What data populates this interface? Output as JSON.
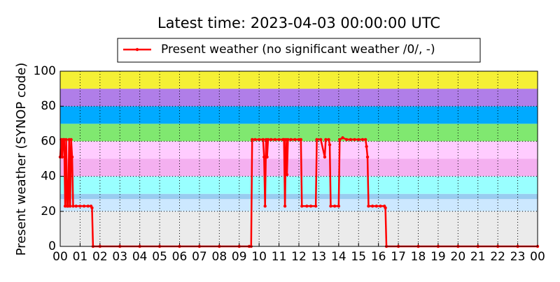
{
  "chart_data": {
    "type": "line",
    "title": "Latest time: 2023-04-03 00:00:00 UTC",
    "y_label": "Present weather (SYNOP code)",
    "xlim": [
      0,
      24
    ],
    "xticks": [
      {
        "value": 0,
        "label": "00"
      },
      {
        "value": 1,
        "label": "01"
      },
      {
        "value": 2,
        "label": "02"
      },
      {
        "value": 3,
        "label": "03"
      },
      {
        "value": 4,
        "label": "04"
      },
      {
        "value": 5,
        "label": "05"
      },
      {
        "value": 6,
        "label": "06"
      },
      {
        "value": 7,
        "label": "07"
      },
      {
        "value": 8,
        "label": "08"
      },
      {
        "value": 9,
        "label": "09"
      },
      {
        "value": 10,
        "label": "10"
      },
      {
        "value": 11,
        "label": "11"
      },
      {
        "value": 12,
        "label": "12"
      },
      {
        "value": 13,
        "label": "13"
      },
      {
        "value": 14,
        "label": "14"
      },
      {
        "value": 15,
        "label": "15"
      },
      {
        "value": 16,
        "label": "16"
      },
      {
        "value": 17,
        "label": "17"
      },
      {
        "value": 18,
        "label": "18"
      },
      {
        "value": 19,
        "label": "19"
      },
      {
        "value": 20,
        "label": "20"
      },
      {
        "value": 21,
        "label": "21"
      },
      {
        "value": 22,
        "label": "22"
      },
      {
        "value": 23,
        "label": "23"
      },
      {
        "value": 24,
        "label": "00"
      }
    ],
    "ylim": [
      0,
      100
    ],
    "yticks": [
      0,
      20,
      40,
      60,
      80,
      100
    ],
    "grid": true,
    "bands": [
      {
        "from": 0,
        "to": 20,
        "color": "#ebebeb"
      },
      {
        "from": 20,
        "to": 27,
        "color": "#cce8ff"
      },
      {
        "from": 27,
        "to": 30,
        "color": "#99ccf0"
      },
      {
        "from": 30,
        "to": 40,
        "color": "#99ffff"
      },
      {
        "from": 40,
        "to": 50,
        "color": "#f4b0f0"
      },
      {
        "from": 50,
        "to": 60,
        "color": "#ffccff"
      },
      {
        "from": 60,
        "to": 70,
        "color": "#80e870"
      },
      {
        "from": 70,
        "to": 80,
        "color": "#00aaff"
      },
      {
        "from": 80,
        "to": 90,
        "color": "#b07ee8"
      },
      {
        "from": 90,
        "to": 100,
        "color": "#f5f035"
      }
    ],
    "x": [
      0,
      0.05,
      0.1,
      0.15,
      0.2,
      0.25,
      0.3,
      0.35,
      0.4,
      0.45,
      0.5,
      0.55,
      0.6,
      0.65,
      0.8,
      1,
      1.2,
      1.4,
      1.55,
      1.6,
      1.65,
      2,
      3,
      4,
      5,
      6,
      7,
      8,
      9,
      9.5,
      9.6,
      9.65,
      9.8,
      10,
      10.2,
      10.25,
      10.3,
      10.35,
      10.4,
      10.45,
      10.6,
      10.8,
      11,
      11.2,
      11.25,
      11.3,
      11.35,
      11.4,
      11.45,
      11.6,
      11.8,
      12,
      12.1,
      12.15,
      12.4,
      12.6,
      12.85,
      12.9,
      13.1,
      13.3,
      13.35,
      13.5,
      13.55,
      13.6,
      13.8,
      14,
      14.05,
      14.2,
      14.4,
      14.6,
      14.8,
      15,
      15.2,
      15.35,
      15.4,
      15.45,
      15.5,
      15.7,
      15.9,
      16.1,
      16.3,
      16.35,
      16.4,
      17,
      18,
      19,
      20,
      21,
      22,
      23,
      24
    ],
    "series": [
      {
        "name": "Present weather (no significant weather /0/, -)",
        "color": "#ff0000",
        "values": [
          51,
          61,
          51,
          61,
          61,
          23,
          61,
          23,
          23,
          61,
          23,
          61,
          51,
          23,
          23,
          23,
          23,
          23,
          23,
          22,
          0,
          0,
          0,
          0,
          0,
          0,
          0,
          0,
          0,
          0,
          0,
          61,
          61,
          61,
          61,
          51,
          23,
          61,
          51,
          61,
          61,
          61,
          61,
          61,
          61,
          23,
          61,
          41,
          61,
          61,
          61,
          61,
          61,
          23,
          23,
          23,
          23,
          61,
          61,
          51,
          61,
          61,
          58,
          23,
          23,
          23,
          61,
          62,
          61,
          61,
          61,
          61,
          61,
          61,
          57,
          51,
          23,
          23,
          23,
          23,
          23,
          22,
          0,
          0,
          0,
          0,
          0,
          0,
          0,
          0,
          0
        ]
      }
    ]
  }
}
